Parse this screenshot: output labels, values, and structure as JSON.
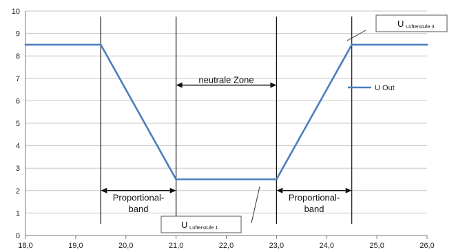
{
  "chart_data": {
    "type": "line",
    "title": "",
    "xlabel": "",
    "ylabel": "",
    "xlim": [
      18.0,
      26.0
    ],
    "ylim": [
      0,
      10
    ],
    "xticks": [
      18.0,
      19.0,
      20.0,
      21.0,
      22.0,
      23.0,
      24.0,
      25.0,
      26.0
    ],
    "xtick_labels": [
      "18,0",
      "19,0",
      "20,0",
      "21,0",
      "22,0",
      "23,0",
      "24,0",
      "25,0",
      "26,0"
    ],
    "yticks": [
      0,
      1,
      2,
      3,
      4,
      5,
      6,
      7,
      8,
      9,
      10
    ],
    "ytick_labels": [
      "0",
      "1",
      "2",
      "3",
      "4",
      "5",
      "6",
      "7",
      "8",
      "9",
      "10"
    ],
    "grid": "horizontal",
    "legend_position": "right",
    "series": [
      {
        "name": "U Out",
        "color": "#4a7ebb",
        "x": [
          18.0,
          19.5,
          21.0,
          23.0,
          24.5,
          26.0
        ],
        "y": [
          8.5,
          8.5,
          2.5,
          2.5,
          8.5,
          8.5
        ]
      }
    ],
    "vertical_lines": [
      19.5,
      21.0,
      23.0,
      24.5
    ],
    "annotations": {
      "neutral_zone": {
        "label": "neutrale Zone",
        "x_range": [
          21.0,
          23.0
        ],
        "y": 6.7,
        "label_y": 6.8
      },
      "proportional_bands": [
        {
          "line1": "Proportional-",
          "line2": "band",
          "x_range": [
            19.5,
            21.0
          ],
          "y": 2.0,
          "label_y1": 1.55,
          "label_y2": 1.05
        },
        {
          "line1": "Proportional-",
          "line2": "band",
          "x_range": [
            23.0,
            24.5
          ],
          "y": 2.0,
          "label_y1": 1.55,
          "label_y2": 1.05
        }
      ],
      "callouts": [
        {
          "main": "U",
          "sub": "Lüfterstufe 3"
        },
        {
          "main": "U",
          "sub": "Lüfterstufe 1"
        }
      ]
    }
  }
}
